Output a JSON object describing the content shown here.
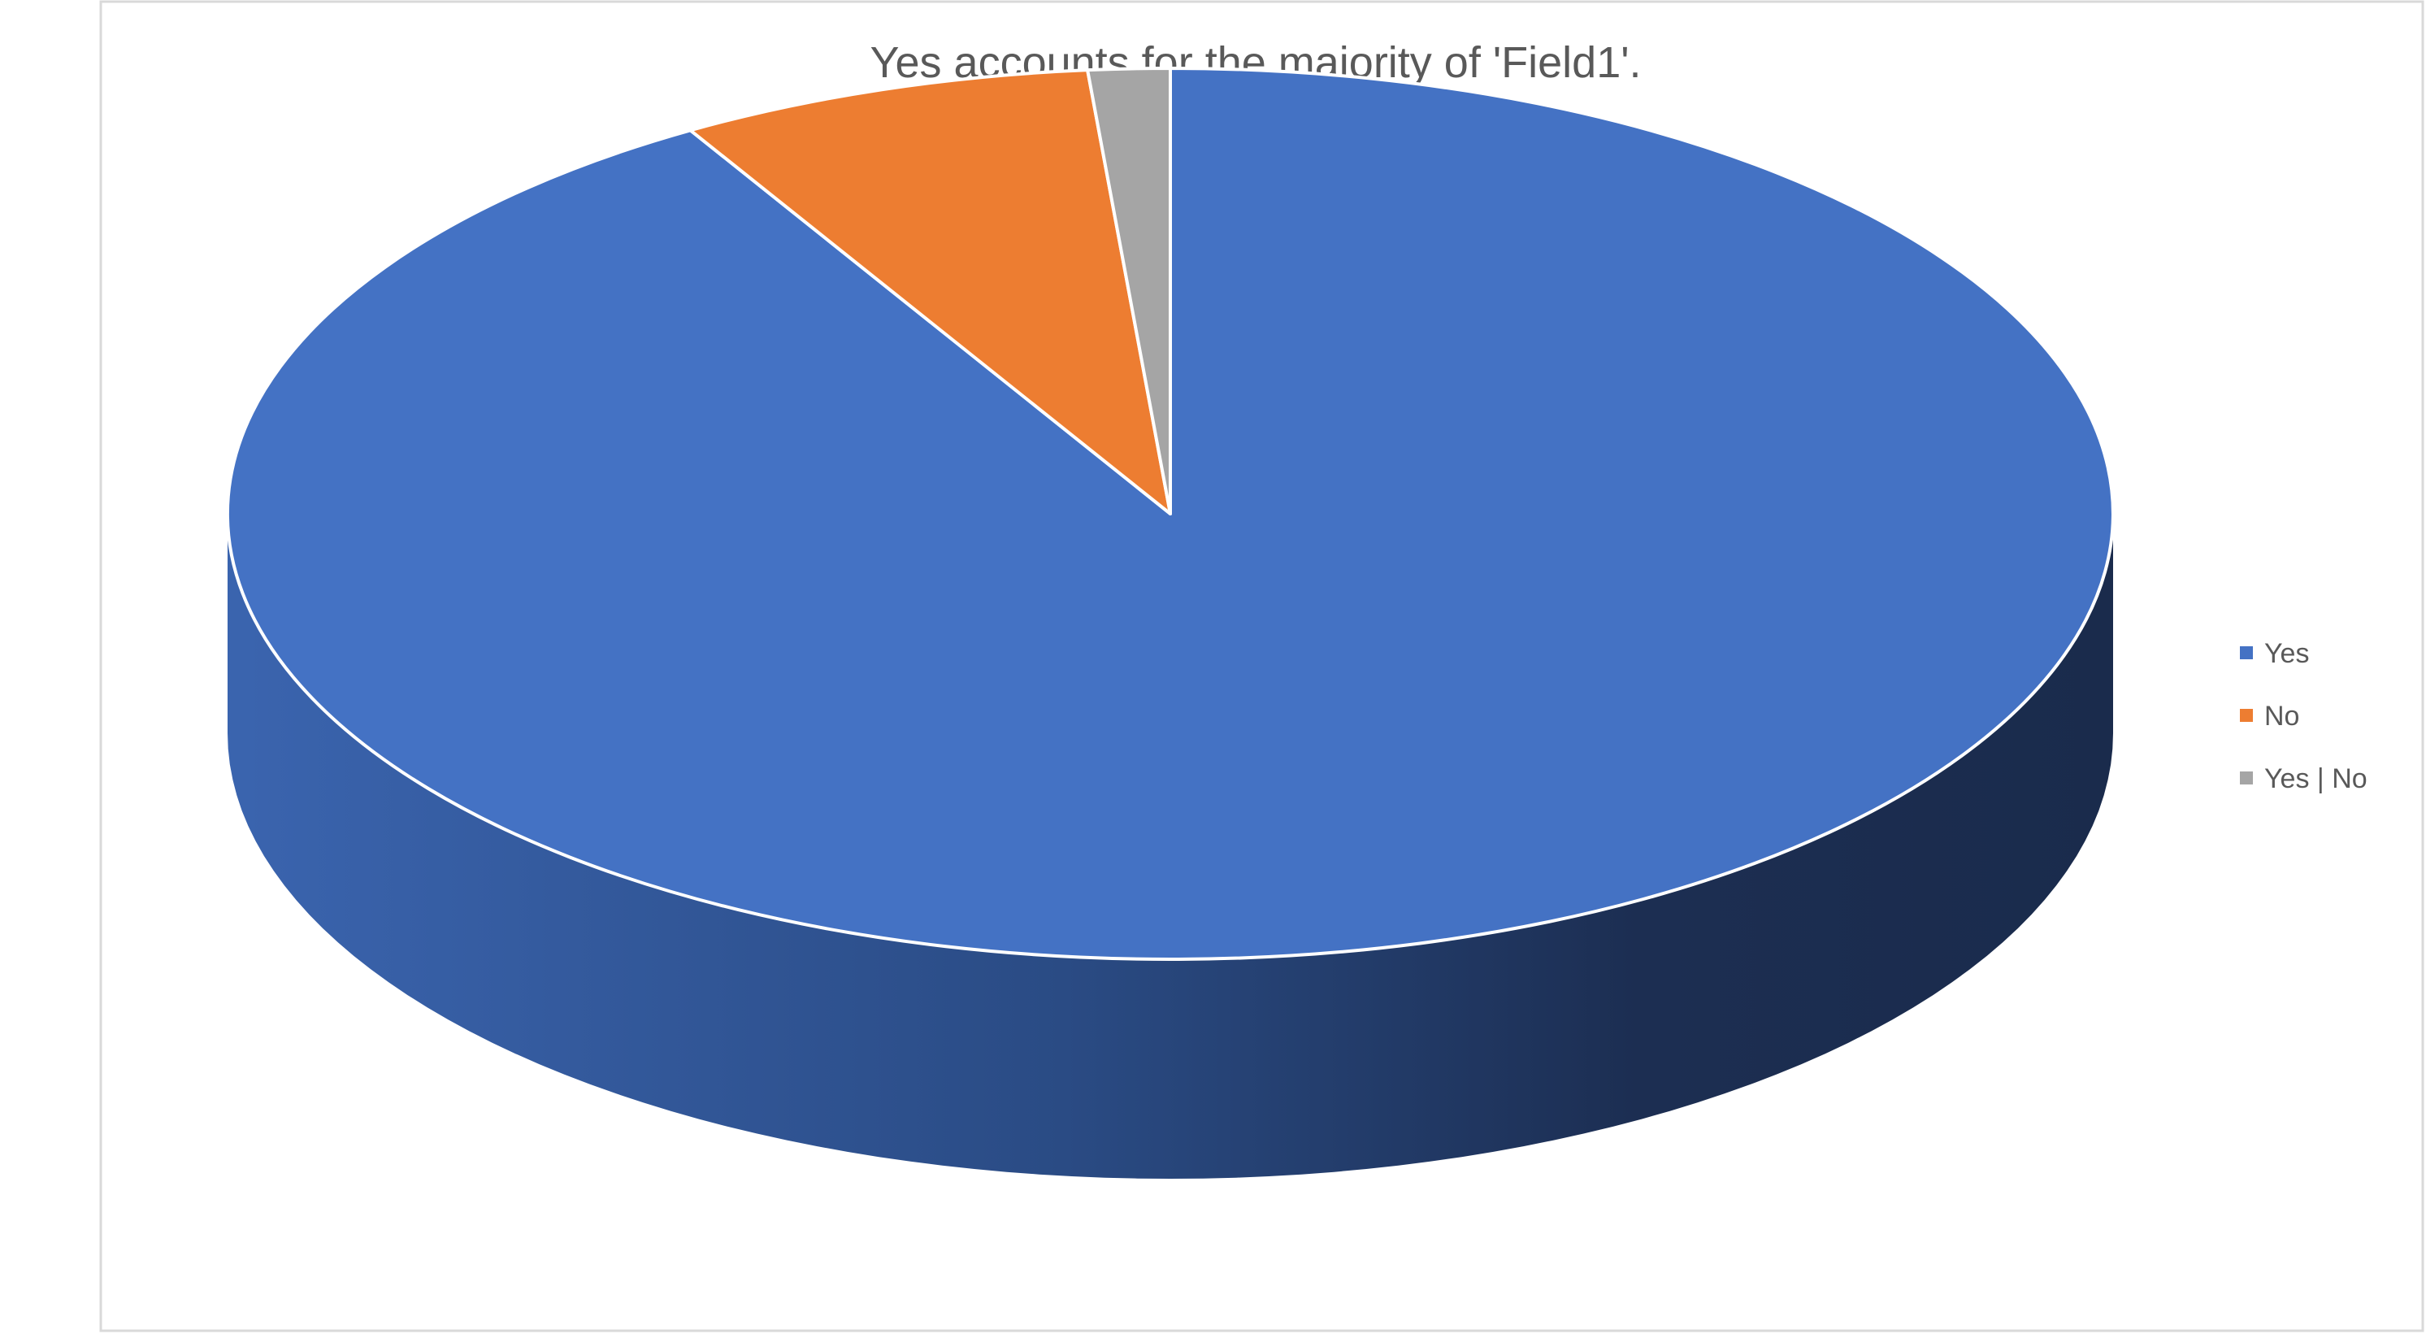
{
  "chart_data": {
    "type": "pie",
    "title": "Yes accounts for the majority of 'Field1'.",
    "style": "3d",
    "categories": [
      "Yes",
      "No",
      "Yes | No"
    ],
    "values": [
      91.5,
      7.1,
      1.4
    ],
    "colors": [
      "#4472C4",
      "#ED7D31",
      "#A5A5A5"
    ],
    "legend_position": "right"
  }
}
